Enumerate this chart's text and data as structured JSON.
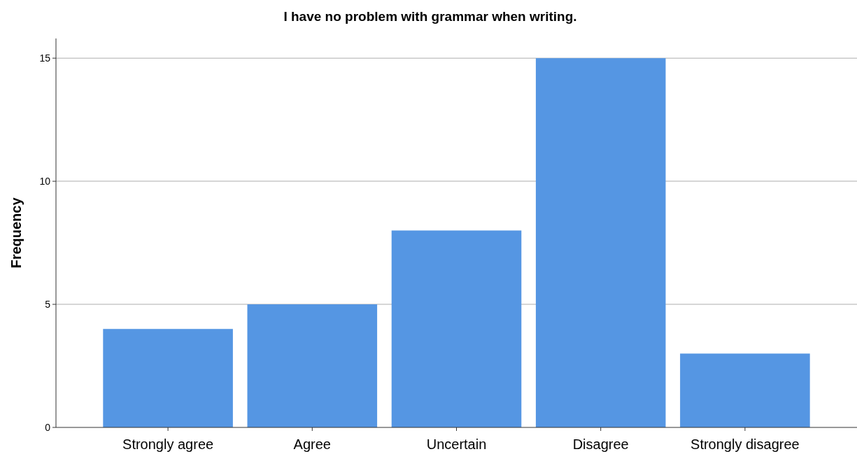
{
  "chart_data": {
    "type": "bar",
    "title": "I have no problem with grammar when writing.",
    "ylabel": "Frequency",
    "categories": [
      "Strongly agree",
      "Agree",
      "Uncertain",
      "Disagree",
      "Strongly disagree"
    ],
    "values": [
      4,
      5,
      8,
      15,
      3
    ],
    "color": "#5596e3",
    "ylim": [
      0,
      15.8
    ],
    "yticks": [
      0,
      5,
      10,
      15
    ],
    "grid": "y"
  }
}
